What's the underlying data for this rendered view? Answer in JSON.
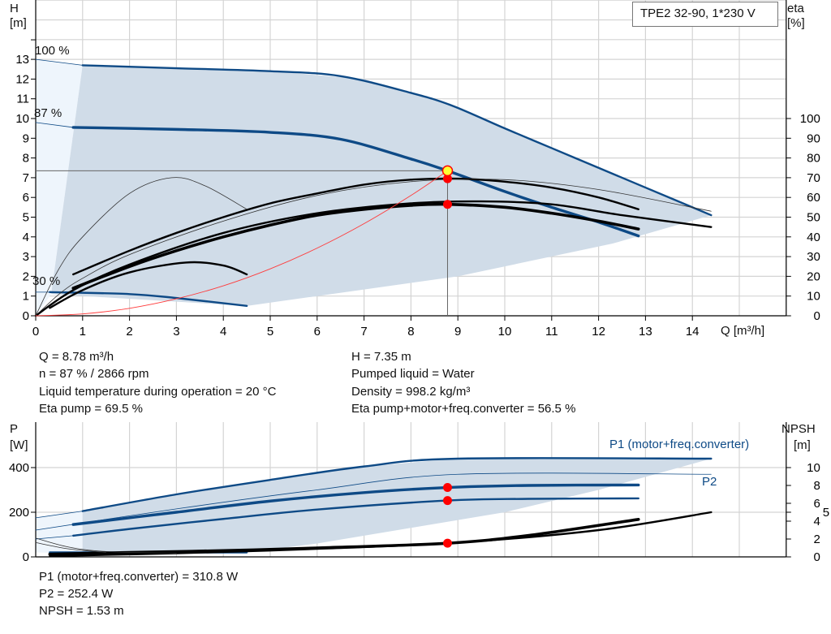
{
  "title": "TPE2 32-90, 1*230 V",
  "colors": {
    "curve_blue": "#0e4a86",
    "region": "#d0dce8",
    "region_light": "#eef5fc",
    "system_curve": "#ff3b3b",
    "duty_point": "#ff0000",
    "duty_marker": "#ffff33"
  },
  "info": {
    "left": [
      "Q = 8.78 m³/h",
      "n = 87 % / 2866 rpm",
      "Liquid temperature during operation = 20 °C",
      "Eta pump = 69.5 %"
    ],
    "right": [
      "H = 7.35 m",
      "Pumped liquid = Water",
      "Density = 998.2 kg/m³",
      "Eta pump+motor+freq.converter = 56.5 %"
    ],
    "bottom": [
      "P1 (motor+freq.converter) = 310.8 W",
      "P2 = 252.4 W",
      "NPSH = 1.53 m"
    ]
  },
  "chart_data": [
    {
      "type": "line",
      "xlabel": "Q [m³/h]",
      "ylabel": "H",
      "ylabel_unit": "[m]",
      "y2label": "eta",
      "y2label_unit": "[%]",
      "xlim": [
        0,
        16
      ],
      "ylim": [
        0,
        16
      ],
      "y2lim": [
        0,
        160
      ],
      "xticks": [
        "0",
        "1",
        "2",
        "3",
        "4",
        "5",
        "6",
        "7",
        "8",
        "9",
        "10",
        "11",
        "12",
        "13",
        "14"
      ],
      "yticks": [
        "0",
        "1",
        "2",
        "3",
        "4",
        "5",
        "6",
        "7",
        "8",
        "9",
        "10",
        "11",
        "12",
        "13"
      ],
      "y2ticks": [
        "0",
        "10",
        "20",
        "30",
        "40",
        "50",
        "60",
        "70",
        "80",
        "90",
        "100"
      ],
      "grid": true,
      "speed_labels": [
        "100 %",
        "87 %",
        "30 %"
      ],
      "region_light": [
        [
          0,
          13
        ],
        [
          1,
          12.7
        ],
        [
          0.33,
          1.1
        ],
        [
          0,
          0
        ]
      ],
      "region": [
        [
          1,
          12.7
        ],
        [
          3,
          12.55
        ],
        [
          5,
          12.4
        ],
        [
          7,
          12
        ],
        [
          9,
          10.6
        ],
        [
          11,
          8.5
        ],
        [
          13,
          6.5
        ],
        [
          14.4,
          5.1
        ],
        [
          12.3,
          3.66
        ],
        [
          9,
          2.0
        ],
        [
          6,
          1.0
        ],
        [
          4.5,
          0.5
        ],
        [
          0.33,
          1.1
        ]
      ],
      "series": [
        {
          "axis": "H",
          "style": "thin-blue",
          "points": [
            [
              0,
              13
            ],
            [
              1,
              12.7
            ]
          ]
        },
        {
          "axis": "H",
          "style": "blue",
          "points": [
            [
              1,
              12.7
            ],
            [
              3,
              12.55
            ],
            [
              5,
              12.4
            ],
            [
              6.5,
              12.15
            ],
            [
              8,
              11.3
            ],
            [
              8.87,
              10.66
            ],
            [
              10,
              9.5
            ],
            [
              11,
              8.5
            ],
            [
              12,
              7.5
            ],
            [
              13,
              6.5
            ],
            [
              14.4,
              5.1
            ]
          ]
        },
        {
          "axis": "H",
          "style": "thin-blue",
          "points": [
            [
              0,
              9.8
            ],
            [
              0.8,
              9.55
            ]
          ]
        },
        {
          "axis": "H",
          "style": "blue-thick",
          "points": [
            [
              0.8,
              9.55
            ],
            [
              3,
              9.45
            ],
            [
              5,
              9.3
            ],
            [
              6.5,
              8.95
            ],
            [
              8,
              7.95
            ],
            [
              8.78,
              7.35
            ],
            [
              10,
              6.3
            ],
            [
              11,
              5.5
            ],
            [
              12,
              4.75
            ],
            [
              12.85,
              4.05
            ]
          ]
        },
        {
          "axis": "H",
          "style": "thin-blue",
          "points": [
            [
              0,
              1.2
            ],
            [
              0.3,
              1.2
            ]
          ]
        },
        {
          "axis": "H",
          "style": "blue",
          "points": [
            [
              0.3,
              1.2
            ],
            [
              2,
              1.1
            ],
            [
              3,
              0.9
            ],
            [
              4.5,
              0.5
            ]
          ]
        },
        {
          "axis": "eta",
          "style": "black",
          "points": [
            [
              0.8,
              21
            ],
            [
              2,
              33
            ],
            [
              3,
              42
            ],
            [
              4,
              50
            ],
            [
              5,
              57
            ],
            [
              6,
              62
            ],
            [
              7,
              66.5
            ],
            [
              8,
              69
            ],
            [
              9,
              69.5
            ],
            [
              10,
              68
            ],
            [
              11,
              65
            ],
            [
              12,
              60
            ],
            [
              12.85,
              54
            ]
          ]
        },
        {
          "axis": "eta",
          "style": "thin-gray",
          "points": [
            [
              0,
              0
            ],
            [
              0.5,
              11
            ],
            [
              1,
              19
            ],
            [
              2,
              31
            ],
            [
              4,
              48
            ],
            [
              6,
              61
            ],
            [
              8,
              68
            ],
            [
              10,
              69
            ],
            [
              12,
              64
            ],
            [
              14.4,
              53
            ]
          ]
        },
        {
          "axis": "eta",
          "style": "black-thick",
          "points": [
            [
              0.8,
              14
            ],
            [
              2,
              25
            ],
            [
              3,
              33
            ],
            [
              4,
              40
            ],
            [
              5,
              46
            ],
            [
              6,
              51
            ],
            [
              7,
              54
            ],
            [
              8,
              56
            ],
            [
              8.78,
              56.5
            ],
            [
              10,
              55
            ],
            [
              11,
              52
            ],
            [
              12,
              48
            ],
            [
              12.85,
              44
            ]
          ]
        },
        {
          "axis": "eta",
          "style": "black",
          "points": [
            [
              0,
              0
            ],
            [
              0.8,
              13
            ],
            [
              2,
              26
            ],
            [
              4,
              42
            ],
            [
              6,
              52
            ],
            [
              8,
              57
            ],
            [
              9.5,
              58
            ],
            [
              11,
              56.5
            ],
            [
              12.5,
              51
            ],
            [
              14.4,
              45
            ]
          ]
        },
        {
          "axis": "eta",
          "style": "black",
          "points": [
            [
              0.3,
              4
            ],
            [
              1,
              13
            ],
            [
              2,
              22
            ],
            [
              3.2,
              27
            ],
            [
              4,
              25.5
            ],
            [
              4.5,
              21
            ]
          ]
        },
        {
          "axis": "eta",
          "style": "thin-gray",
          "points": [
            [
              0,
              0
            ],
            [
              0.5,
              24
            ],
            [
              1,
              40
            ],
            [
              2,
              62
            ],
            [
              2.9,
              70
            ],
            [
              3.6,
              66
            ],
            [
              4.5,
              54
            ]
          ]
        },
        {
          "axis": "H",
          "style": "red",
          "points": [
            [
              0,
              0
            ],
            [
              1,
              0.095
            ],
            [
              2,
              0.38
            ],
            [
              3,
              0.86
            ],
            [
              4,
              1.52
            ],
            [
              5,
              2.38
            ],
            [
              6,
              3.43
            ],
            [
              7,
              4.67
            ],
            [
              8,
              6.1
            ],
            [
              8.78,
              7.35
            ]
          ]
        }
      ],
      "duty_point": {
        "Q": 8.78,
        "H": 7.35,
        "eta_pump": 69.5,
        "eta_total": 56.5
      }
    },
    {
      "type": "line",
      "ylabel": "P",
      "ylabel_unit": "[W]",
      "y2label": "NPSH",
      "y2label_unit": "[m]",
      "xlim": [
        0,
        16
      ],
      "ylim": [
        0,
        604
      ],
      "y2lim": [
        0,
        15.1
      ],
      "yticks": [
        "0",
        "200",
        "400"
      ],
      "y2ticks": [
        "0",
        "2",
        "4",
        "5",
        "6",
        "8",
        "10"
      ],
      "grid": true,
      "legend": [
        "P1 (motor+freq.converter)",
        "P2"
      ],
      "region_light": [
        [
          0,
          175
        ],
        [
          1,
          205
        ],
        [
          1,
          15
        ],
        [
          0,
          20
        ]
      ],
      "region": [
        [
          1,
          205
        ],
        [
          3,
          280
        ],
        [
          5,
          345
        ],
        [
          7,
          405
        ],
        [
          9,
          440
        ],
        [
          14.4,
          440
        ],
        [
          12,
          300
        ],
        [
          10,
          200
        ],
        [
          8,
          130
        ],
        [
          6,
          60
        ],
        [
          4.5,
          20
        ],
        [
          1,
          15
        ]
      ],
      "series": [
        {
          "axis": "P",
          "style": "thin-blue",
          "points": [
            [
              0,
              175
            ],
            [
              1,
              205
            ]
          ]
        },
        {
          "axis": "P",
          "style": "blue",
          "points": [
            [
              1,
              205
            ],
            [
              3,
              280
            ],
            [
              5,
              345
            ],
            [
              7,
              405
            ],
            [
              9,
              440
            ],
            [
              14.4,
              440
            ]
          ]
        },
        {
          "axis": "P",
          "style": "thin-blue",
          "points": [
            [
              0,
              120
            ],
            [
              3,
              215
            ],
            [
              6,
              300
            ],
            [
              9,
              370
            ],
            [
              14.4,
              370
            ]
          ]
        },
        {
          "axis": "P",
          "style": "blue-thick",
          "points": [
            [
              0.8,
              145
            ],
            [
              3,
              200
            ],
            [
              5,
              250
            ],
            [
              7,
              288
            ],
            [
              8.78,
              310.8
            ],
            [
              10.5,
              320
            ],
            [
              12.85,
              322
            ]
          ]
        },
        {
          "axis": "P",
          "style": "thin-blue",
          "points": [
            [
              0,
              80
            ],
            [
              0.8,
              95
            ]
          ]
        },
        {
          "axis": "P",
          "style": "blue",
          "points": [
            [
              0.8,
              95
            ],
            [
              2,
              125
            ],
            [
              4,
              170
            ],
            [
              6,
              212
            ],
            [
              8.78,
              252.4
            ],
            [
              10.5,
              260
            ],
            [
              12.85,
              262
            ]
          ]
        },
        {
          "axis": "P",
          "style": "blue",
          "points": [
            [
              0.3,
              20
            ],
            [
              4.5,
              20
            ]
          ]
        },
        {
          "axis": "NPSH",
          "style": "black-thick",
          "points": [
            [
              0.3,
              0.3
            ],
            [
              2,
              0.5
            ],
            [
              4,
              0.7
            ],
            [
              6,
              1
            ],
            [
              8.78,
              1.53
            ],
            [
              10.5,
              2.4
            ],
            [
              12.85,
              4.2
            ]
          ]
        },
        {
          "axis": "NPSH",
          "style": "black",
          "points": [
            [
              0.3,
              0.1
            ],
            [
              3,
              0.4
            ],
            [
              6,
              0.9
            ],
            [
              9,
              1.6
            ],
            [
              12,
              3
            ],
            [
              14.4,
              5.0
            ]
          ]
        },
        {
          "axis": "NPSH",
          "style": "thin-gray",
          "points": [
            [
              0,
              2.1
            ],
            [
              0.7,
              1.1
            ],
            [
              1.5,
              0.6
            ],
            [
              3,
              0.4
            ]
          ]
        },
        {
          "axis": "NPSH",
          "style": "thin-gray",
          "points": [
            [
              0,
              1.6
            ],
            [
              0.7,
              0.9
            ],
            [
              1.5,
              0.5
            ]
          ]
        }
      ],
      "duty_point": {
        "P1": 310.8,
        "P2": 252.4,
        "NPSH": 1.53,
        "Q": 8.78
      }
    }
  ]
}
